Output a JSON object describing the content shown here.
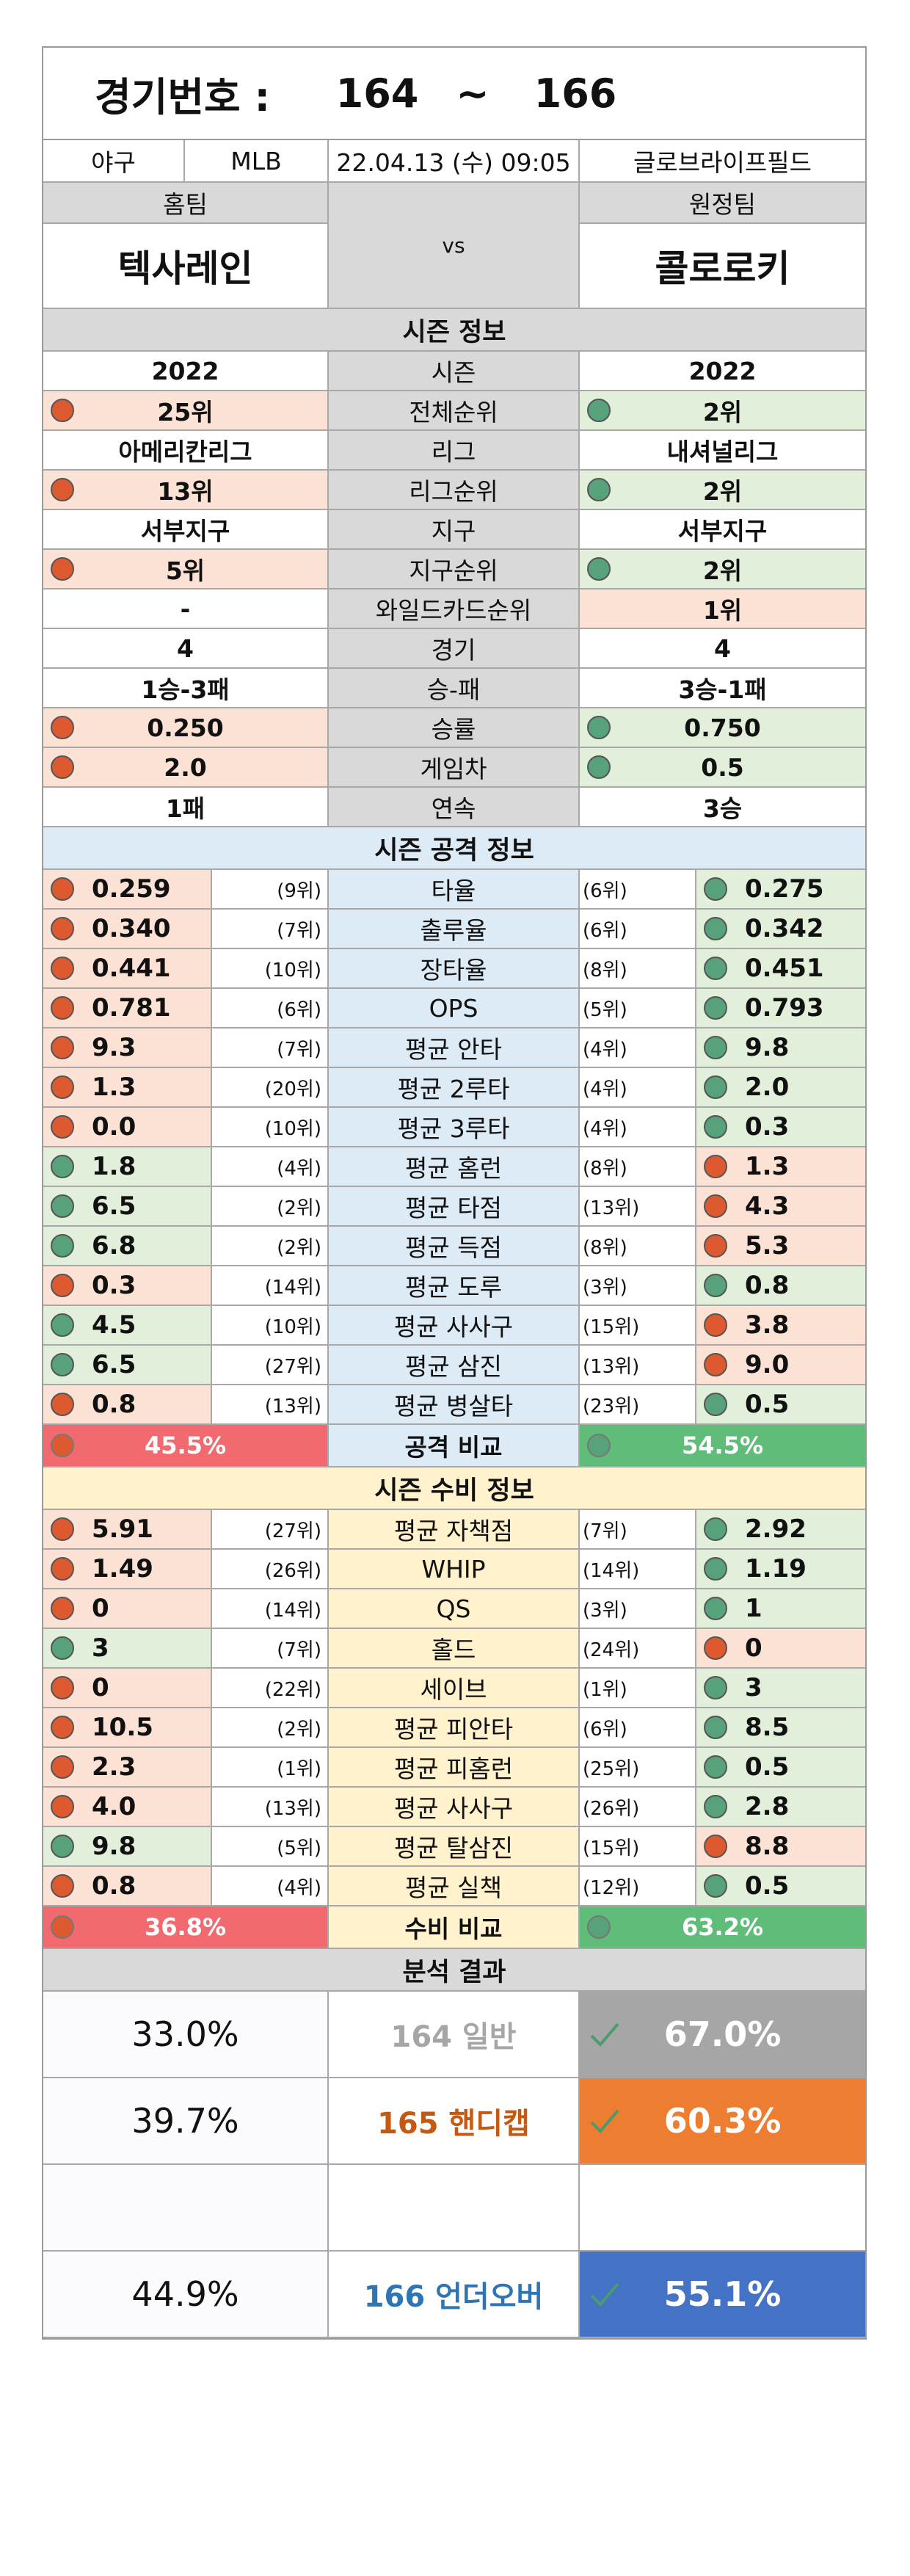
{
  "header": {
    "label": "경기번호 :",
    "from": "164",
    "tilde": "~",
    "to": "166"
  },
  "info": {
    "sport": "야구",
    "league": "MLB",
    "datetime": "22.04.13 (수) 09:05",
    "stadium": "글로브라이프필드"
  },
  "teams": {
    "home_label": "홈팀",
    "away_label": "원정팀",
    "home": "텍사레인",
    "vs": "vs",
    "away": "콜로로키"
  },
  "season": {
    "title": "시즌 정보",
    "rows": [
      {
        "label": "시즌",
        "home": "2022",
        "away": "2022",
        "hc": "",
        "ac": "",
        "hd": "",
        "ad": ""
      },
      {
        "label": "전체순위",
        "home": "25위",
        "away": "2위",
        "hc": "pink",
        "ac": "green",
        "hd": "r",
        "ad": "g"
      },
      {
        "label": "리그",
        "home": "아메리칸리그",
        "away": "내셔널리그",
        "hc": "",
        "ac": "",
        "hd": "",
        "ad": ""
      },
      {
        "label": "리그순위",
        "home": "13위",
        "away": "2위",
        "hc": "pink",
        "ac": "green",
        "hd": "r",
        "ad": "g"
      },
      {
        "label": "지구",
        "home": "서부지구",
        "away": "서부지구",
        "hc": "",
        "ac": "",
        "hd": "",
        "ad": ""
      },
      {
        "label": "지구순위",
        "home": "5위",
        "away": "2위",
        "hc": "pink",
        "ac": "green",
        "hd": "r",
        "ad": "g"
      },
      {
        "label": "와일드카드순위",
        "home": "-",
        "away": "1위",
        "hc": "",
        "ac": "pink",
        "hd": "",
        "ad": ""
      },
      {
        "label": "경기",
        "home": "4",
        "away": "4",
        "hc": "",
        "ac": "",
        "hd": "",
        "ad": ""
      },
      {
        "label": "승-패",
        "home": "1승-3패",
        "away": "3승-1패",
        "hc": "",
        "ac": "",
        "hd": "",
        "ad": ""
      },
      {
        "label": "승률",
        "home": "0.250",
        "away": "0.750",
        "hc": "pink",
        "ac": "green",
        "hd": "r",
        "ad": "g"
      },
      {
        "label": "게임차",
        "home": "2.0",
        "away": "0.5",
        "hc": "pink",
        "ac": "green",
        "hd": "r",
        "ad": "g"
      },
      {
        "label": "연속",
        "home": "1패",
        "away": "3승",
        "hc": "",
        "ac": "",
        "hd": "",
        "ad": ""
      }
    ]
  },
  "offense": {
    "title": "시즌 공격 정보",
    "rows": [
      {
        "label": "타율",
        "home": "0.259",
        "hrank": "(9위)",
        "arank": "(6위)",
        "away": "0.275",
        "h": "r",
        "a": "g"
      },
      {
        "label": "출루율",
        "home": "0.340",
        "hrank": "(7위)",
        "arank": "(6위)",
        "away": "0.342",
        "h": "r",
        "a": "g"
      },
      {
        "label": "장타율",
        "home": "0.441",
        "hrank": "(10위)",
        "arank": "(8위)",
        "away": "0.451",
        "h": "r",
        "a": "g"
      },
      {
        "label": "OPS",
        "home": "0.781",
        "hrank": "(6위)",
        "arank": "(5위)",
        "away": "0.793",
        "h": "r",
        "a": "g"
      },
      {
        "label": "평균 안타",
        "home": "9.3",
        "hrank": "(7위)",
        "arank": "(4위)",
        "away": "9.8",
        "h": "r",
        "a": "g"
      },
      {
        "label": "평균 2루타",
        "home": "1.3",
        "hrank": "(20위)",
        "arank": "(4위)",
        "away": "2.0",
        "h": "r",
        "a": "g"
      },
      {
        "label": "평균 3루타",
        "home": "0.0",
        "hrank": "(10위)",
        "arank": "(4위)",
        "away": "0.3",
        "h": "r",
        "a": "g"
      },
      {
        "label": "평균 홈런",
        "home": "1.8",
        "hrank": "(4위)",
        "arank": "(8위)",
        "away": "1.3",
        "h": "g",
        "a": "r"
      },
      {
        "label": "평균 타점",
        "home": "6.5",
        "hrank": "(2위)",
        "arank": "(13위)",
        "away": "4.3",
        "h": "g",
        "a": "r"
      },
      {
        "label": "평균 득점",
        "home": "6.8",
        "hrank": "(2위)",
        "arank": "(8위)",
        "away": "5.3",
        "h": "g",
        "a": "r"
      },
      {
        "label": "평균 도루",
        "home": "0.3",
        "hrank": "(14위)",
        "arank": "(3위)",
        "away": "0.8",
        "h": "r",
        "a": "g"
      },
      {
        "label": "평균 사사구",
        "home": "4.5",
        "hrank": "(10위)",
        "arank": "(15위)",
        "away": "3.8",
        "h": "g",
        "a": "r"
      },
      {
        "label": "평균 삼진",
        "home": "6.5",
        "hrank": "(27위)",
        "arank": "(13위)",
        "away": "9.0",
        "h": "g",
        "a": "r"
      },
      {
        "label": "평균 병살타",
        "home": "0.8",
        "hrank": "(13위)",
        "arank": "(23위)",
        "away": "0.5",
        "h": "r",
        "a": "g"
      }
    ],
    "compare": {
      "label": "공격 비교",
      "home": "45.5%",
      "away": "54.5%"
    }
  },
  "defense": {
    "title": "시즌 수비 정보",
    "rows": [
      {
        "label": "평균 자책점",
        "home": "5.91",
        "hrank": "(27위)",
        "arank": "(7위)",
        "away": "2.92",
        "h": "r",
        "a": "g"
      },
      {
        "label": "WHIP",
        "home": "1.49",
        "hrank": "(26위)",
        "arank": "(14위)",
        "away": "1.19",
        "h": "r",
        "a": "g"
      },
      {
        "label": "QS",
        "home": "0",
        "hrank": "(14위)",
        "arank": "(3위)",
        "away": "1",
        "h": "r",
        "a": "g"
      },
      {
        "label": "홀드",
        "home": "3",
        "hrank": "(7위)",
        "arank": "(24위)",
        "away": "0",
        "h": "g",
        "a": "r"
      },
      {
        "label": "세이브",
        "home": "0",
        "hrank": "(22위)",
        "arank": "(1위)",
        "away": "3",
        "h": "r",
        "a": "g"
      },
      {
        "label": "평균 피안타",
        "home": "10.5",
        "hrank": "(2위)",
        "arank": "(6위)",
        "away": "8.5",
        "h": "r",
        "a": "g"
      },
      {
        "label": "평균 피홈런",
        "home": "2.3",
        "hrank": "(1위)",
        "arank": "(25위)",
        "away": "0.5",
        "h": "r",
        "a": "g"
      },
      {
        "label": "평균 사사구",
        "home": "4.0",
        "hrank": "(13위)",
        "arank": "(26위)",
        "away": "2.8",
        "h": "r",
        "a": "g"
      },
      {
        "label": "평균 탈삼진",
        "home": "9.8",
        "hrank": "(5위)",
        "arank": "(15위)",
        "away": "8.8",
        "h": "g",
        "a": "r"
      },
      {
        "label": "평균 실책",
        "home": "0.8",
        "hrank": "(4위)",
        "arank": "(12위)",
        "away": "0.5",
        "h": "r",
        "a": "g"
      }
    ],
    "compare": {
      "label": "수비 비교",
      "home": "36.8%",
      "away": "63.2%"
    }
  },
  "analysis": {
    "title": "분석 결과",
    "rows": [
      {
        "home": "33.0%",
        "label": "164 일반",
        "away": "67.0%",
        "label_color": "#a6a6a6",
        "box_color": "#a6a6a6"
      },
      {
        "home": "39.7%",
        "label": "165 핸디캡",
        "away": "60.3%",
        "label_color": "#c65911",
        "box_color": "#ed7d31"
      },
      {
        "home": "",
        "label": "",
        "away": "",
        "label_color": "",
        "box_color": ""
      },
      {
        "home": "44.9%",
        "label": "166 언더오버",
        "away": "55.1%",
        "label_color": "#2e75b6",
        "box_color": "#4472c4"
      }
    ]
  }
}
